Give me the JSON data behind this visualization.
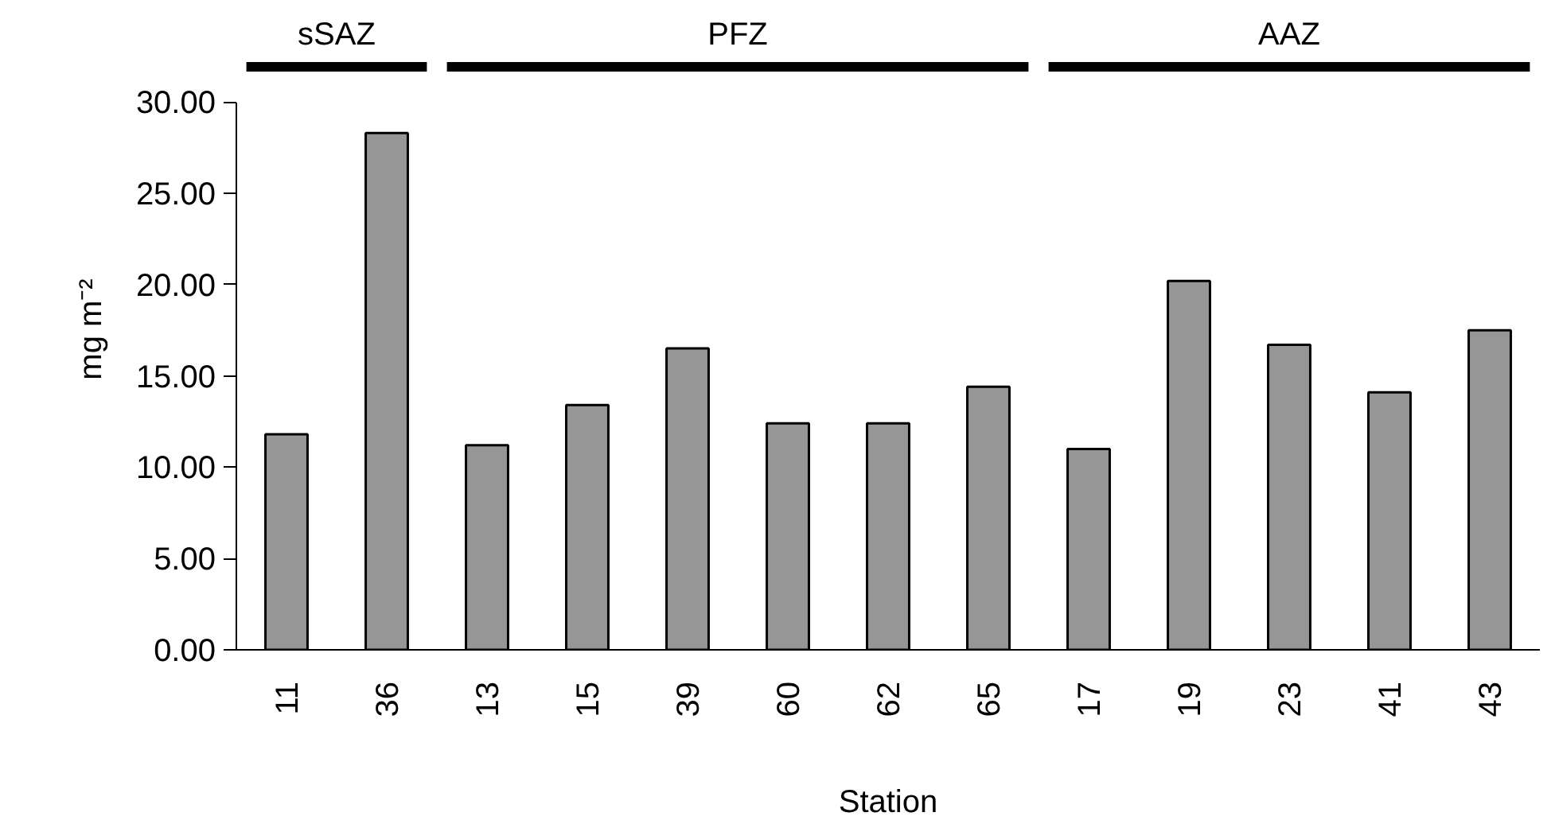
{
  "chart_data": {
    "type": "bar",
    "xlabel": "Station",
    "ylabel": "mg m⁻²",
    "categories": [
      "11",
      "36",
      "13",
      "15",
      "39",
      "60",
      "62",
      "65",
      "17",
      "19",
      "23",
      "41",
      "43"
    ],
    "values": [
      11.8,
      28.3,
      11.2,
      13.4,
      16.5,
      12.4,
      12.4,
      14.4,
      11.0,
      20.2,
      16.7,
      14.1,
      17.5
    ],
    "color": "#969696",
    "ylim": [
      0,
      30
    ],
    "yticks": [
      {
        "value": 0,
        "label": "0.00"
      },
      {
        "value": 5,
        "label": "5.00"
      },
      {
        "value": 10,
        "label": "10.00"
      },
      {
        "value": 15,
        "label": "15.00"
      },
      {
        "value": 20,
        "label": "20.00"
      },
      {
        "value": 25,
        "label": "25.00"
      },
      {
        "value": 30,
        "label": "30.00"
      }
    ],
    "grid": false,
    "annotations": [
      "sSAZ",
      "PFZ",
      "AAZ"
    ]
  }
}
